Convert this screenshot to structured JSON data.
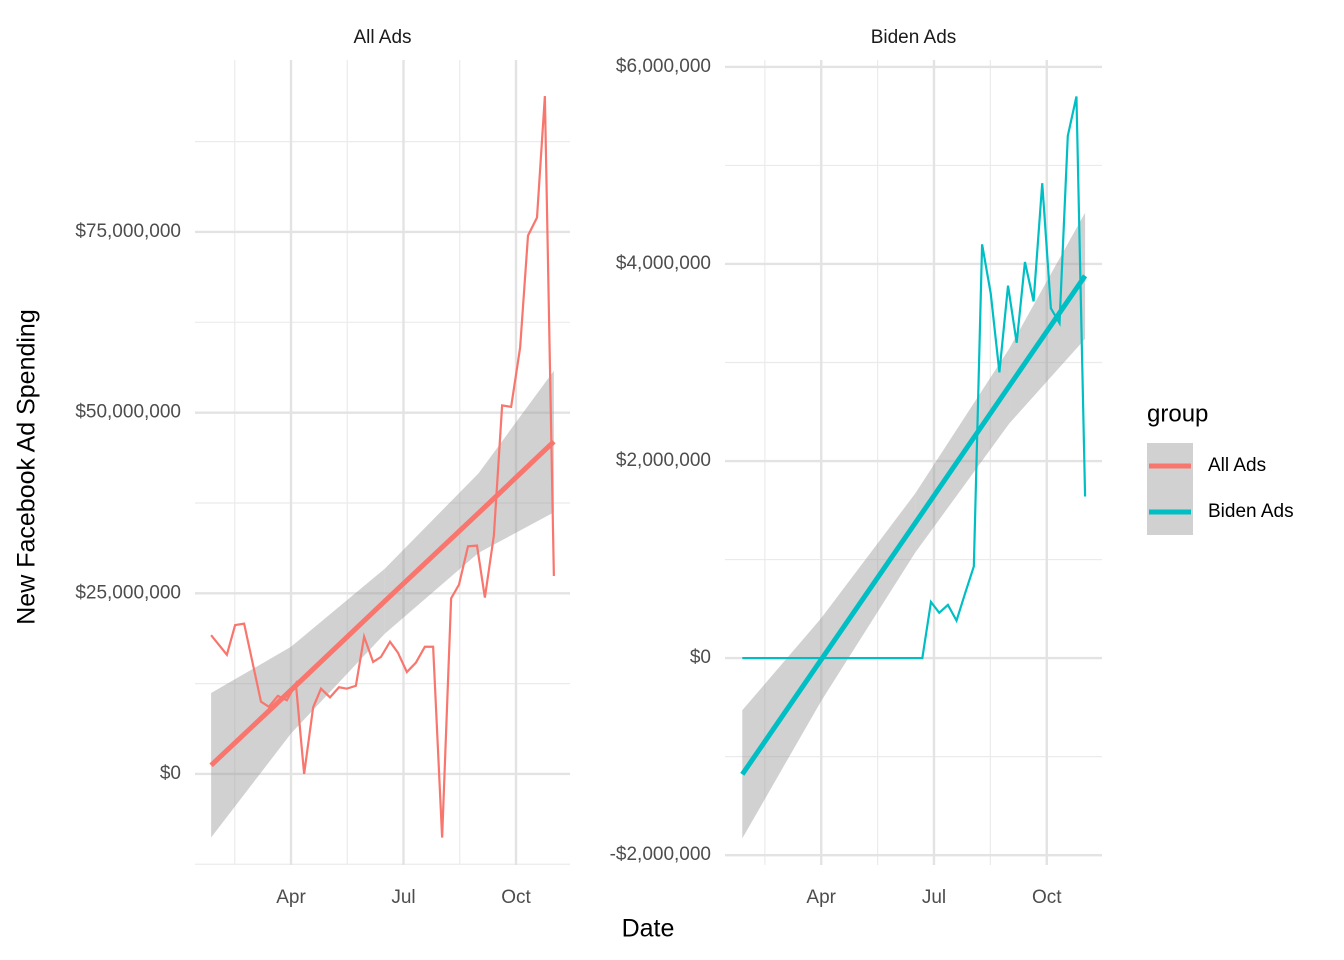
{
  "ylabel": "New Facebook Ad Spending",
  "xlabel": "Date",
  "legend": {
    "title": "group",
    "position": "right"
  },
  "chart_data": [
    {
      "type": "line",
      "title": "All Ads",
      "x": [
        1.87,
        2.29,
        2.51,
        2.75,
        3.2,
        3.41,
        3.65,
        3.89,
        4.13,
        4.35,
        4.59,
        4.8,
        5.04,
        5.28,
        5.49,
        5.73,
        5.95,
        6.19,
        6.4,
        6.64,
        6.85,
        7.09,
        7.33,
        7.57,
        7.79,
        8.03,
        8.27,
        8.48,
        8.72,
        8.96,
        9.17,
        9.41,
        9.63,
        9.87,
        10.11,
        10.32,
        10.56,
        10.77,
        11.01
      ],
      "series": [
        {
          "name": "All Ads",
          "color": "#f8766d",
          "values": [
            19200000,
            16500000,
            20600000,
            20800000,
            10000000,
            9300000,
            10800000,
            10200000,
            12500000,
            0,
            9200000,
            11800000,
            10600000,
            12000000,
            11800000,
            12200000,
            19000000,
            15500000,
            16200000,
            18300000,
            16800000,
            14100000,
            15400000,
            17600000,
            17600000,
            -8800000,
            24300000,
            26200000,
            31500000,
            31600000,
            24400000,
            33000000,
            51000000,
            50800000,
            59000000,
            74500000,
            77000000,
            93800000,
            27400000
          ]
        }
      ],
      "trend": {
        "x": [
          1.87,
          4,
          6.5,
          9,
          11.01
        ],
        "values": [
          1200000,
          11600000,
          23900000,
          36100000,
          46000000
        ],
        "lower": [
          -8800000,
          5600000,
          19400000,
          30600000,
          36200000
        ],
        "upper": [
          11200000,
          17600000,
          28400000,
          41600000,
          55800000
        ]
      },
      "xlim": [
        1.44,
        11.44
      ],
      "xticks": [
        {
          "value": 4,
          "label": "Apr"
        },
        {
          "value": 7,
          "label": "Jul"
        },
        {
          "value": 10,
          "label": "Oct"
        }
      ],
      "x_minor_ticks": [
        2.5,
        5.5,
        8.5
      ],
      "ylim": [
        -12600000,
        98800000
      ],
      "yticks": [
        {
          "value": 0,
          "label": "$0"
        },
        {
          "value": 25000000,
          "label": "$25,000,000"
        },
        {
          "value": 50000000,
          "label": "$50,000,000"
        },
        {
          "value": 75000000,
          "label": "$75,000,000"
        }
      ],
      "y_minor_ticks": [
        -12500000,
        12500000,
        37500000,
        62500000,
        87500000
      ],
      "grid": true
    },
    {
      "type": "line",
      "title": "Biden Ads",
      "x": [
        1.9,
        2.13,
        2.36,
        2.58,
        2.81,
        3.04,
        3.27,
        3.5,
        3.72,
        3.95,
        4.18,
        4.41,
        4.64,
        4.86,
        5.09,
        5.32,
        5.55,
        5.78,
        6.0,
        6.23,
        6.46,
        6.69,
        6.92,
        7.14,
        7.37,
        7.6,
        7.83,
        8.06,
        8.28,
        8.51,
        8.74,
        8.97,
        9.2,
        9.42,
        9.65,
        9.88,
        10.11,
        10.34,
        10.56,
        10.79,
        11.02
      ],
      "series": [
        {
          "name": "Biden Ads",
          "color": "#00bfc4",
          "values": [
            0,
            0,
            0,
            0,
            0,
            0,
            0,
            0,
            0,
            0,
            0,
            0,
            0,
            0,
            0,
            0,
            0,
            0,
            0,
            0,
            0,
            0,
            570000,
            460000,
            540000,
            380000,
            660000,
            930000,
            4200000,
            3700000,
            2900000,
            3780000,
            3200000,
            4020000,
            3620000,
            4820000,
            3550000,
            3400000,
            5300000,
            5700000,
            1640000
          ]
        }
      ],
      "trend": {
        "x": [
          1.9,
          4,
          6.5,
          9,
          11.02
        ],
        "values": [
          -1180000,
          -15000,
          1370000,
          2760000,
          3880000
        ],
        "lower": [
          -1830000,
          -435000,
          1070000,
          2380000,
          3240000
        ],
        "upper": [
          -530000,
          405000,
          1670000,
          3140000,
          4520000
        ]
      },
      "xlim": [
        1.44,
        11.47
      ],
      "xticks": [
        {
          "value": 4,
          "label": "Apr"
        },
        {
          "value": 7,
          "label": "Jul"
        },
        {
          "value": 10,
          "label": "Oct"
        }
      ],
      "x_minor_ticks": [
        2.5,
        5.5,
        8.5
      ],
      "ylim": [
        -2100000,
        6070000
      ],
      "yticks": [
        {
          "value": -2000000,
          "label": "-$2,000,000"
        },
        {
          "value": 0,
          "label": "$0"
        },
        {
          "value": 2000000,
          "label": "$2,000,000"
        },
        {
          "value": 4000000,
          "label": "$4,000,000"
        },
        {
          "value": 6000000,
          "label": "$6,000,000"
        }
      ],
      "y_minor_ticks": [
        -1000000,
        1000000,
        3000000,
        5000000
      ],
      "grid": true
    }
  ]
}
